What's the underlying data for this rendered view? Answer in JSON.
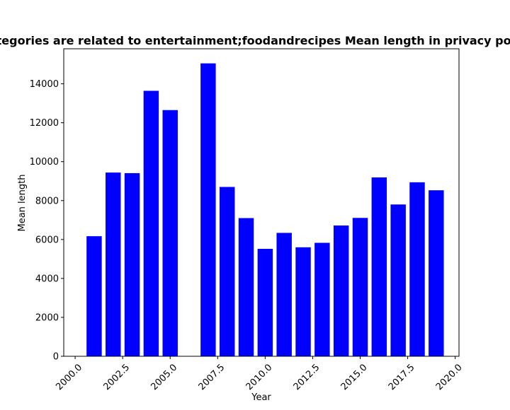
{
  "chart_data": {
    "type": "bar",
    "title": "Categories are related to entertainment;foodandrecipes Mean length in privacy policies",
    "xlabel": "Year",
    "ylabel": "Mean length",
    "x": [
      2001,
      2002,
      2003,
      2004,
      2005,
      2007,
      2008,
      2009,
      2010,
      2011,
      2012,
      2013,
      2014,
      2015,
      2016,
      2017,
      2018,
      2019
    ],
    "values": [
      6170,
      9440,
      9410,
      13640,
      12650,
      15050,
      8700,
      7100,
      5520,
      6340,
      5600,
      5830,
      6720,
      7110,
      9190,
      7800,
      8940,
      8530
    ],
    "xlim": [
      1999.4,
      2020.2
    ],
    "ylim": [
      0,
      15800
    ],
    "xticks": [
      "2000.0",
      "2002.5",
      "2005.0",
      "2007.5",
      "2010.0",
      "2012.5",
      "2015.0",
      "2017.5",
      "2020.0"
    ],
    "yticks": [
      "0",
      "2000",
      "4000",
      "6000",
      "8000",
      "10000",
      "12000",
      "14000"
    ],
    "bar_color": "#0000ff",
    "grid": false,
    "legend": "none"
  }
}
